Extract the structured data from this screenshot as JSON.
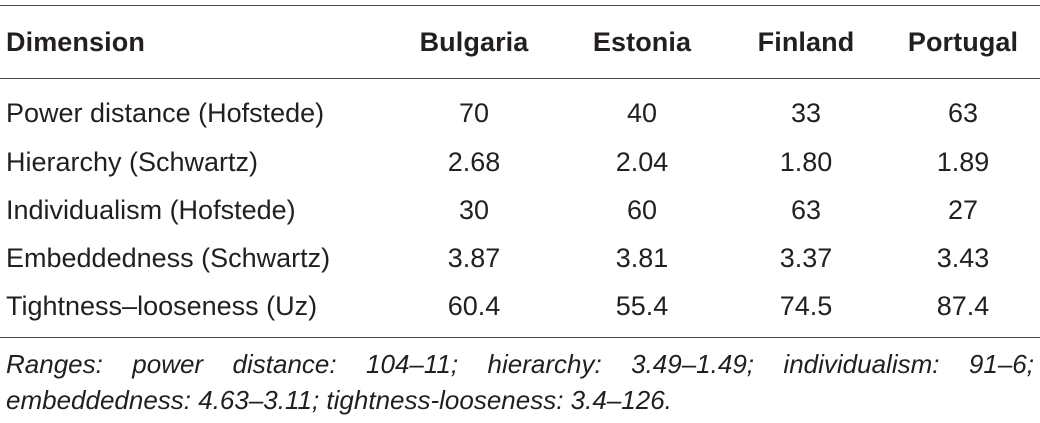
{
  "table": {
    "headers": [
      "Dimension",
      "Bulgaria",
      "Estonia",
      "Finland",
      "Portugal"
    ],
    "rows": [
      [
        "Power distance (Hofstede)",
        "70",
        "40",
        "33",
        "63"
      ],
      [
        "Hierarchy (Schwartz)",
        "2.68",
        "2.04",
        "1.80",
        "1.89"
      ],
      [
        "Individualism (Hofstede)",
        "30",
        "60",
        "63",
        "27"
      ],
      [
        "Embeddedness (Schwartz)",
        "3.87",
        "3.81",
        "3.37",
        "3.43"
      ],
      [
        "Tightness–looseness (Uz)",
        "60.4",
        "55.4",
        "74.5",
        "87.4"
      ]
    ]
  },
  "note": {
    "line1": "Ranges: power distance: 104–11; hierarchy: 3.49–1.49; individualism: 91–6;",
    "line2": "embeddedness: 4.63–3.11; tightness-looseness: 3.4–126."
  }
}
